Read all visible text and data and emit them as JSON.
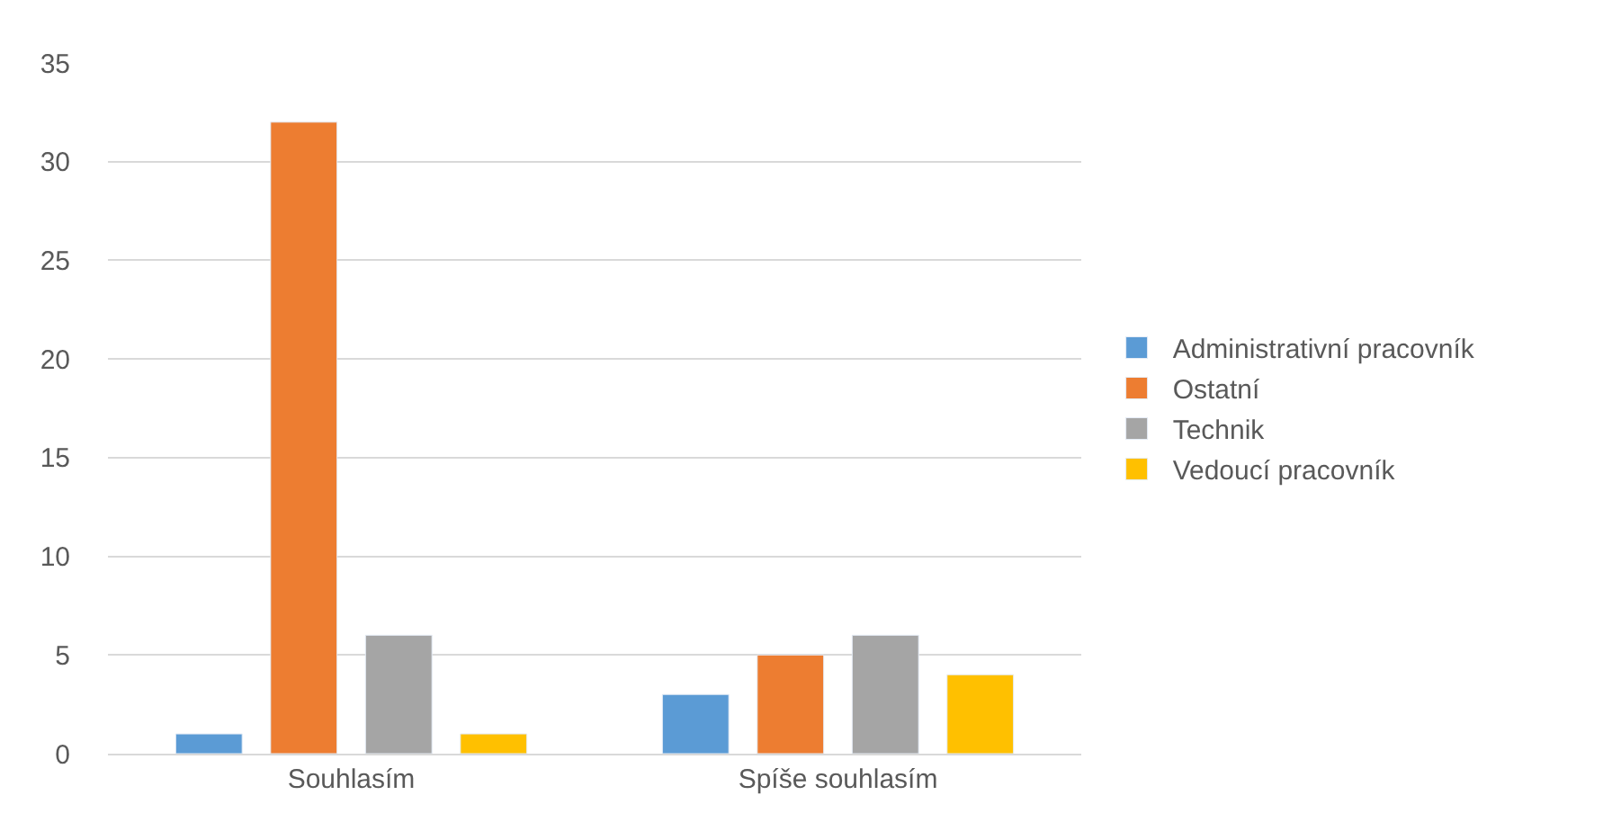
{
  "chart_data": {
    "type": "bar",
    "categories": [
      "Souhlasím",
      "Spíše souhlasím"
    ],
    "series": [
      {
        "name": "Administrativní pracovník",
        "color": "#5b9bd5",
        "values": [
          1,
          3
        ]
      },
      {
        "name": "Ostatní",
        "color": "#ed7d31",
        "values": [
          32,
          5
        ]
      },
      {
        "name": "Technik",
        "color": "#a5a5a5",
        "values": [
          6,
          6
        ]
      },
      {
        "name": "Vedoucí pracovník",
        "color": "#ffc000",
        "values": [
          1,
          4
        ]
      }
    ],
    "ylim": [
      0,
      35
    ],
    "yticks": [
      0,
      5,
      10,
      15,
      20,
      25,
      30,
      35
    ],
    "grid": "y",
    "legend": "right"
  }
}
